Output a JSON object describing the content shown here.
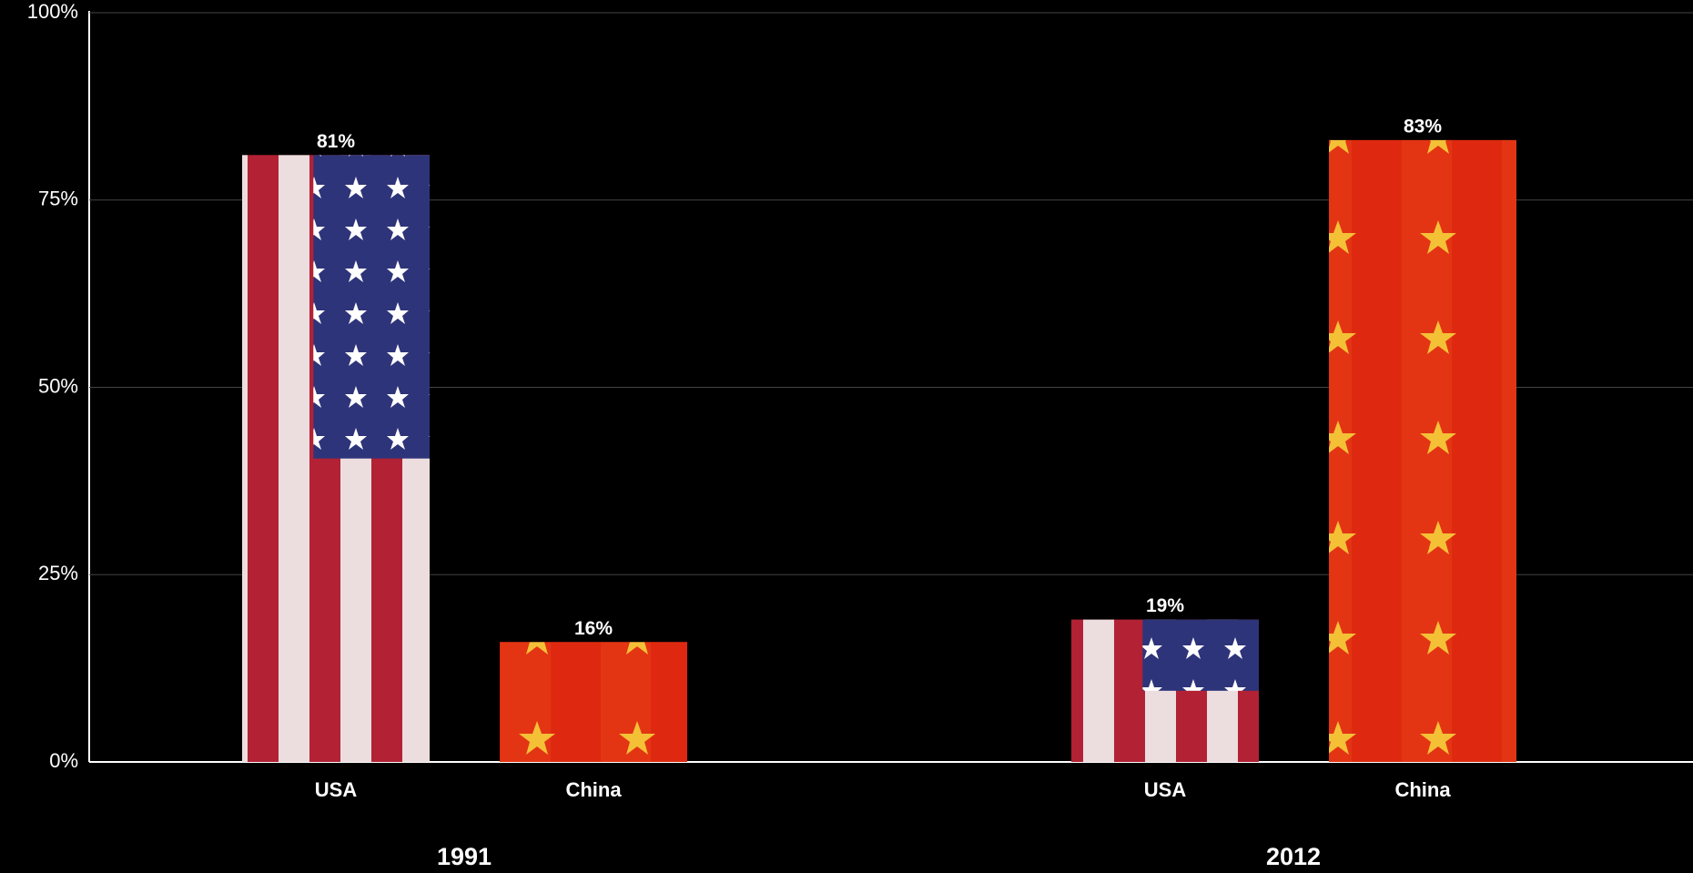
{
  "chart_data": {
    "type": "bar",
    "categories": [
      "1991",
      "2012"
    ],
    "series": [
      {
        "name": "USA",
        "color": "#b22234",
        "values": [
          81,
          19
        ],
        "value_labels": [
          "81%",
          "19%"
        ]
      },
      {
        "name": "China",
        "color": "#de2910",
        "values": [
          16,
          83
        ],
        "value_labels": [
          "16%",
          "83%"
        ]
      }
    ],
    "ylim": [
      0,
      100
    ],
    "yticks": [
      {
        "value": 0,
        "label": "0%"
      },
      {
        "value": 25,
        "label": "25%"
      },
      {
        "value": 50,
        "label": "50%"
      },
      {
        "value": 75,
        "label": "75%"
      },
      {
        "value": 100,
        "label": "100%"
      }
    ],
    "grid": true
  }
}
